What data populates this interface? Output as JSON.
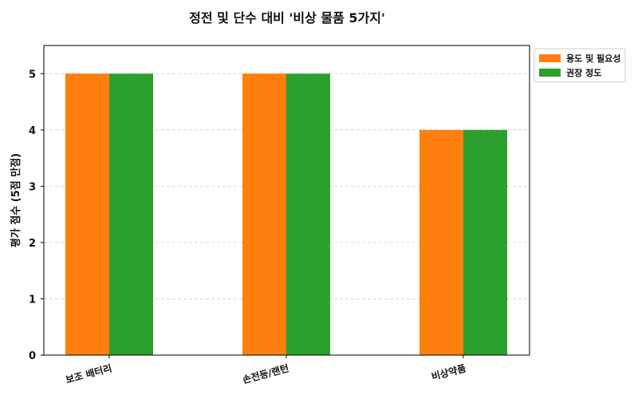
{
  "chart_data": {
    "type": "bar",
    "title": "정전 및 단수 대비 '비상 물품 5가지'",
    "xlabel": "",
    "ylabel": "평가 점수 (5점 만점)",
    "ylim": [
      0,
      5.5
    ],
    "yticks": [
      0,
      1,
      2,
      3,
      4,
      5
    ],
    "categories": [
      "보조 배터리",
      "손전등/랜턴",
      "비상약품"
    ],
    "series": [
      {
        "name": "용도 및 필요성",
        "color": "#ff7f0e",
        "values": [
          5,
          5,
          4
        ]
      },
      {
        "name": "권장 정도",
        "color": "#2ca02c",
        "values": [
          5,
          5,
          4
        ]
      }
    ],
    "grid": true,
    "legend_position": "outside-top-right"
  }
}
